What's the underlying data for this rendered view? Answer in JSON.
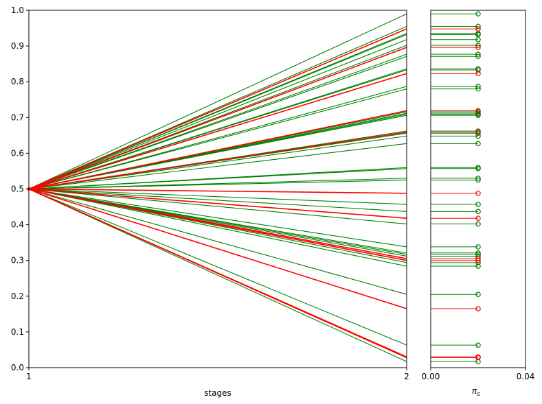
{
  "chart_data": [
    {
      "type": "line",
      "title": "",
      "xlabel": "stages",
      "ylabel": "",
      "xlim": [
        1,
        2
      ],
      "ylim": [
        0,
        1
      ],
      "x_ticks": [
        1,
        2
      ],
      "y_ticks": [
        0.0,
        0.1,
        0.2,
        0.3,
        0.4,
        0.5,
        0.6,
        0.7,
        0.8,
        0.9,
        1.0
      ],
      "x_tick_labels": [
        "1",
        "2"
      ],
      "y_tick_labels": [
        "0.0",
        "0.1",
        "0.2",
        "0.3",
        "0.4",
        "0.5",
        "0.6",
        "0.7",
        "0.8",
        "0.9",
        "1.0"
      ],
      "start": {
        "x": 1,
        "y": 0.5
      },
      "series": [
        {
          "color": "green",
          "values": [
            0.5,
            0.99
          ]
        },
        {
          "color": "green",
          "values": [
            0.5,
            0.955
          ]
        },
        {
          "color": "red",
          "values": [
            0.5,
            0.948
          ]
        },
        {
          "color": "green",
          "values": [
            0.5,
            0.935
          ]
        },
        {
          "color": "green",
          "values": [
            0.5,
            0.932
          ]
        },
        {
          "color": "green",
          "values": [
            0.5,
            0.918
          ]
        },
        {
          "color": "green",
          "values": [
            0.5,
            0.902
          ]
        },
        {
          "color": "red",
          "values": [
            0.5,
            0.896
          ]
        },
        {
          "color": "green",
          "values": [
            0.5,
            0.877
          ]
        },
        {
          "color": "green",
          "values": [
            0.5,
            0.871
          ]
        },
        {
          "color": "green",
          "values": [
            0.5,
            0.836
          ]
        },
        {
          "color": "green",
          "values": [
            0.5,
            0.833
          ]
        },
        {
          "color": "red",
          "values": [
            0.5,
            0.823
          ]
        },
        {
          "color": "green",
          "values": [
            0.5,
            0.787
          ]
        },
        {
          "color": "green",
          "values": [
            0.5,
            0.78
          ]
        },
        {
          "color": "red",
          "values": [
            0.5,
            0.719
          ]
        },
        {
          "color": "green",
          "values": [
            0.5,
            0.716
          ]
        },
        {
          "color": "green",
          "values": [
            0.5,
            0.712
          ]
        },
        {
          "color": "green",
          "values": [
            0.5,
            0.709
          ]
        },
        {
          "color": "green",
          "values": [
            0.5,
            0.706
          ]
        },
        {
          "color": "green",
          "values": [
            0.5,
            0.662
          ]
        },
        {
          "color": "red",
          "values": [
            0.5,
            0.659
          ]
        },
        {
          "color": "green",
          "values": [
            0.5,
            0.656
          ]
        },
        {
          "color": "green",
          "values": [
            0.5,
            0.648
          ]
        },
        {
          "color": "green",
          "values": [
            0.5,
            0.627
          ]
        },
        {
          "color": "green",
          "values": [
            0.5,
            0.56
          ]
        },
        {
          "color": "green",
          "values": [
            0.5,
            0.557
          ]
        },
        {
          "color": "green",
          "values": [
            0.5,
            0.53
          ]
        },
        {
          "color": "green",
          "values": [
            0.5,
            0.525
          ]
        },
        {
          "color": "red",
          "values": [
            0.5,
            0.488
          ]
        },
        {
          "color": "green",
          "values": [
            0.5,
            0.457
          ]
        },
        {
          "color": "green",
          "values": [
            0.5,
            0.437
          ]
        },
        {
          "color": "red",
          "values": [
            0.5,
            0.418
          ]
        },
        {
          "color": "green",
          "values": [
            0.5,
            0.402
          ]
        },
        {
          "color": "green",
          "values": [
            0.5,
            0.338
          ]
        },
        {
          "color": "green",
          "values": [
            0.5,
            0.321
          ]
        },
        {
          "color": "green",
          "values": [
            0.5,
            0.317
          ]
        },
        {
          "color": "green",
          "values": [
            0.5,
            0.312
          ]
        },
        {
          "color": "red",
          "values": [
            0.5,
            0.305
          ]
        },
        {
          "color": "red",
          "values": [
            0.5,
            0.3
          ]
        },
        {
          "color": "green",
          "values": [
            0.5,
            0.294
          ]
        },
        {
          "color": "green",
          "values": [
            0.5,
            0.284
          ]
        },
        {
          "color": "green",
          "values": [
            0.5,
            0.205
          ]
        },
        {
          "color": "red",
          "values": [
            0.5,
            0.165
          ]
        },
        {
          "color": "green",
          "values": [
            0.5,
            0.063
          ]
        },
        {
          "color": "red",
          "values": [
            0.5,
            0.03
          ]
        },
        {
          "color": "red",
          "values": [
            0.5,
            0.028
          ]
        },
        {
          "color": "green",
          "values": [
            0.5,
            0.017
          ]
        }
      ]
    },
    {
      "type": "stem",
      "title": "",
      "xlabel": "π_s",
      "ylabel": "",
      "xlim": [
        0.0,
        0.04
      ],
      "ylim": [
        0,
        1
      ],
      "x_ticks": [
        0.0,
        0.04
      ],
      "x_tick_labels": [
        "0.00",
        "0.04"
      ],
      "marker": "open circle",
      "probability": 0.02,
      "note": "horizontal stems from x=0 to the probability value, one per scenario, at each scenario's final value; colors match the left panel"
    }
  ],
  "colors": {
    "green": "#008000",
    "red": "#ff0000",
    "axis": "#000000",
    "background": "#ffffff"
  }
}
